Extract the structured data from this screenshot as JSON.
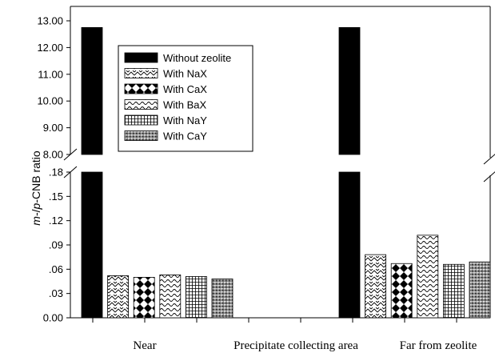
{
  "chart_data": {
    "type": "bar",
    "categories": [
      "Near",
      "Precipitate collecting area",
      "Far from zeolite"
    ],
    "ylabel_parts": [
      "m",
      "-/",
      "p",
      "-CNB ratio"
    ],
    "axis_break": true,
    "lower_axis": {
      "ylim": [
        0,
        0.18
      ],
      "ticks": [
        0.0,
        0.03,
        0.06,
        0.09,
        0.12,
        0.15,
        0.18
      ],
      "tick_labels": [
        "0.00",
        ".03",
        ".06",
        ".09",
        ".12",
        ".15",
        ".18"
      ]
    },
    "upper_axis": {
      "ylim": [
        8,
        13
      ],
      "ticks": [
        8,
        9,
        10,
        11,
        12,
        13
      ],
      "tick_labels": [
        "8.00",
        "9.00",
        "10.00",
        "11.00",
        "12.00",
        "13.00"
      ]
    },
    "series": [
      {
        "name": "Without zeolite",
        "pattern": "solid",
        "values": [
          12.75,
          null,
          12.75
        ]
      },
      {
        "name": "With NaX",
        "pattern": "zigzag",
        "values": [
          0.052,
          null,
          0.078
        ]
      },
      {
        "name": "With CaX",
        "pattern": "diamonds",
        "values": [
          0.05,
          null,
          0.067
        ]
      },
      {
        "name": "With BaX",
        "pattern": "waves",
        "values": [
          0.053,
          null,
          0.102
        ]
      },
      {
        "name": "With NaY",
        "pattern": "grid",
        "values": [
          0.051,
          null,
          0.066
        ]
      },
      {
        "name": "With CaY",
        "pattern": "stipple",
        "values": [
          0.048,
          null,
          0.069
        ]
      }
    ],
    "legend_position": "top-left"
  }
}
